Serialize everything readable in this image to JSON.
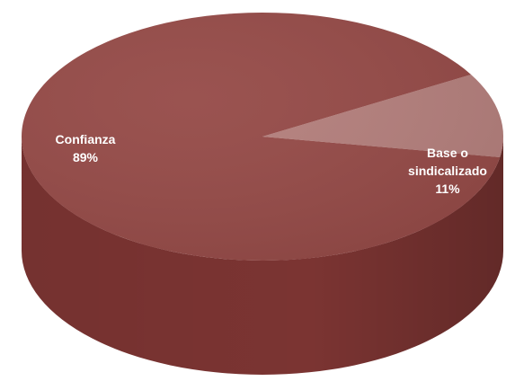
{
  "chart_data": {
    "type": "pie",
    "style": "3d",
    "title": "",
    "slices": [
      {
        "name": "Confianza",
        "value": 89,
        "percent_label": "89%",
        "label_lines": [
          "Confianza"
        ],
        "color": "#954A47"
      },
      {
        "name": "Base o sindicalizado",
        "value": 11,
        "percent_label": "11%",
        "label_lines": [
          "Base o",
          "sindicalizado"
        ],
        "color": "#B47F7C"
      }
    ],
    "side_color": "#7B3432",
    "legend": "none"
  }
}
